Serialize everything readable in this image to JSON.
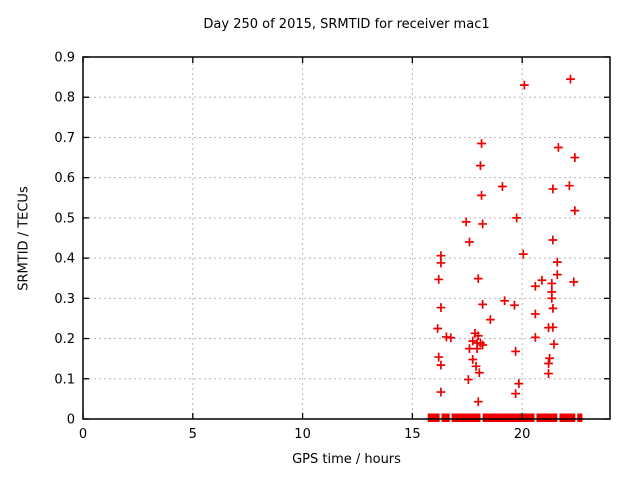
{
  "chart_data": {
    "type": "scatter",
    "title": "Day 250 of 2015, SRMTID for receiver mac1",
    "xlabel": "GPS time / hours",
    "ylabel": "SRMTID / TECUs",
    "xlim": [
      0,
      24
    ],
    "ylim": [
      0,
      0.9
    ],
    "grid": true,
    "legend": "none",
    "marker": "plus",
    "marker_color": "#ee0000",
    "grid_color": "#b8b8b8",
    "frame_color": "#000000",
    "background_color": "#ffffff",
    "xticks": [
      {
        "v": 0,
        "label": "0"
      },
      {
        "v": 5,
        "label": "5"
      },
      {
        "v": 10,
        "label": "10"
      },
      {
        "v": 15,
        "label": "15"
      },
      {
        "v": 20,
        "label": "20"
      }
    ],
    "yticks": [
      {
        "v": 0.0,
        "label": "0"
      },
      {
        "v": 0.1,
        "label": "0.1"
      },
      {
        "v": 0.2,
        "label": "0.2"
      },
      {
        "v": 0.3,
        "label": "0.3"
      },
      {
        "v": 0.4,
        "label": "0.4"
      },
      {
        "v": 0.5,
        "label": "0.5"
      },
      {
        "v": 0.6,
        "label": "0.6"
      },
      {
        "v": 0.7,
        "label": "0.7"
      },
      {
        "v": 0.8,
        "label": "0.8"
      },
      {
        "v": 0.9,
        "label": "0.9"
      }
    ],
    "series": [
      {
        "name": "SRMTID",
        "points": [
          [
            22.2,
            0.845
          ],
          [
            20.1,
            0.83
          ],
          [
            18.15,
            0.685
          ],
          [
            21.65,
            0.675
          ],
          [
            22.4,
            0.65
          ],
          [
            18.1,
            0.63
          ],
          [
            19.1,
            0.578
          ],
          [
            22.15,
            0.58
          ],
          [
            21.4,
            0.572
          ],
          [
            18.15,
            0.556
          ],
          [
            22.4,
            0.518
          ],
          [
            19.75,
            0.5
          ],
          [
            17.45,
            0.49
          ],
          [
            18.2,
            0.485
          ],
          [
            21.4,
            0.445
          ],
          [
            17.6,
            0.44
          ],
          [
            20.05,
            0.41
          ],
          [
            16.3,
            0.406
          ],
          [
            21.6,
            0.39
          ],
          [
            16.3,
            0.388
          ],
          [
            21.6,
            0.359
          ],
          [
            18.0,
            0.349
          ],
          [
            16.2,
            0.347
          ],
          [
            20.9,
            0.345
          ],
          [
            22.35,
            0.341
          ],
          [
            21.35,
            0.337
          ],
          [
            20.6,
            0.33
          ],
          [
            21.35,
            0.316
          ],
          [
            21.35,
            0.3
          ],
          [
            19.2,
            0.294
          ],
          [
            18.2,
            0.285
          ],
          [
            19.65,
            0.283
          ],
          [
            16.3,
            0.277
          ],
          [
            21.4,
            0.275
          ],
          [
            20.6,
            0.261
          ],
          [
            18.55,
            0.247
          ],
          [
            21.4,
            0.228
          ],
          [
            21.2,
            0.227
          ],
          [
            16.15,
            0.225
          ],
          [
            17.85,
            0.213
          ],
          [
            18.0,
            0.207
          ],
          [
            16.55,
            0.204
          ],
          [
            20.6,
            0.203
          ],
          [
            16.75,
            0.202
          ],
          [
            17.75,
            0.194
          ],
          [
            17.95,
            0.189
          ],
          [
            18.1,
            0.189
          ],
          [
            21.45,
            0.186
          ],
          [
            18.2,
            0.184
          ],
          [
            17.6,
            0.175
          ],
          [
            17.95,
            0.175
          ],
          [
            19.7,
            0.168
          ],
          [
            16.2,
            0.154
          ],
          [
            21.25,
            0.151
          ],
          [
            17.75,
            0.148
          ],
          [
            21.2,
            0.138
          ],
          [
            16.3,
            0.134
          ],
          [
            17.9,
            0.131
          ],
          [
            18.05,
            0.115
          ],
          [
            21.2,
            0.113
          ],
          [
            17.55,
            0.098
          ],
          [
            19.85,
            0.088
          ],
          [
            16.3,
            0.067
          ],
          [
            19.7,
            0.063
          ],
          [
            18.0,
            0.043
          ]
        ]
      }
    ],
    "zero_band_segments_hours": [
      [
        15.7,
        16.24
      ],
      [
        16.33,
        16.7
      ],
      [
        16.79,
        18.1
      ],
      [
        18.2,
        20.56
      ],
      [
        20.65,
        21.6
      ],
      [
        21.7,
        22.42
      ],
      [
        22.51,
        22.74
      ]
    ]
  }
}
